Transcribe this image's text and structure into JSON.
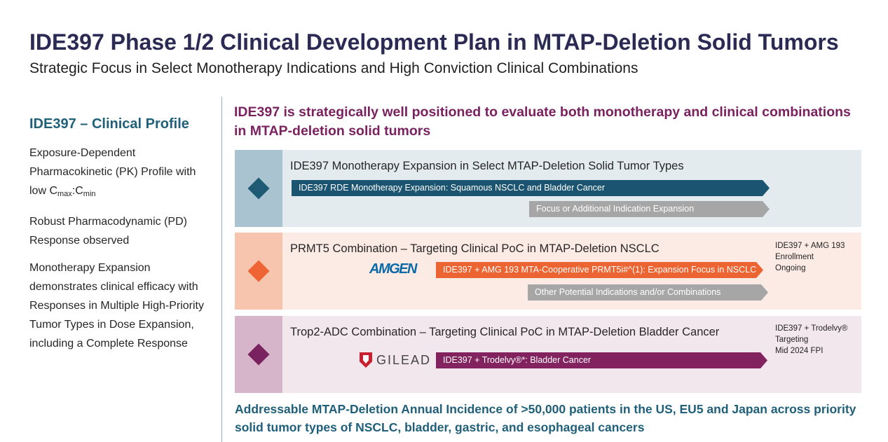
{
  "title": "IDE397 Phase 1/2 Clinical Development Plan in MTAP-Deletion Solid Tumors",
  "subtitle": "Strategic Focus in Select Monotherapy Indications and High Conviction Clinical Combinations",
  "left": {
    "heading": "IDE397 – Clinical Profile",
    "p1_main": "Exposure-Dependent Pharmacokinetic (PK) Profile with low C",
    "p1_sub1": "max",
    "p1_mid": ":C",
    "p1_sub2": "min",
    "p2": "Robust Pharmacodynamic (PD) Response observed",
    "p3": "Monotherapy Expansion demonstrates clinical efficacy with Responses in Multiple High-Priority Tumor Types in Dose Expansion, including a Complete Response"
  },
  "headline": "IDE397 is strategically well positioned to evaluate both monotherapy and clinical combinations in MTAP-deletion solid tumors",
  "rows": [
    {
      "title": "IDE397 Monotherapy Expansion in Select MTAP-Deletion Solid Tumor Types",
      "arrow1": "IDE397 RDE Monotherapy Expansion: Squamous NSCLC and Bladder Cancer",
      "arrow2": "Focus or Additional Indication Expansion"
    },
    {
      "title": "PRMT5 Combination – Targeting Clinical PoC in MTAP-Deletion NSCLC",
      "logo": "AMGEN",
      "arrow1": "IDE397 + AMG 193 MTA-Cooperative PRMT5i#^(1): Expansion Focus in NSCLC",
      "arrow2": "Other Potential Indications and/or Combinations",
      "note": [
        "IDE397 + AMG 193",
        "Enrollment",
        "Ongoing"
      ]
    },
    {
      "title": "Trop2-ADC Combination – Targeting Clinical PoC in MTAP-Deletion Bladder Cancer",
      "logo": "GILEAD",
      "arrow1": "IDE397 + Trodelvy®*: Bladder Cancer",
      "note": [
        "IDE397 + Trodelvy®",
        "Targeting",
        "Mid 2024 FPI"
      ]
    }
  ],
  "bottom": "Addressable MTAP-Deletion Annual Incidence of >50,000 patients in the US, EU5 and Japan across priority solid tumor types of NSCLC, bladder, gastric, and esophageal cancers",
  "colors": {
    "row1_side": "#a9c3d1",
    "row1_bg": "#e3ebef",
    "row1_diamond": "#1f5a74",
    "row1_arrow": "#1a5470",
    "row2_side": "#f7c4ae",
    "row2_bg": "#fcebe5",
    "row2_diamond": "#ee6433",
    "row2_arrow": "#ec6431",
    "row3_side": "#d6b5cb",
    "row3_bg": "#f3e7ee",
    "row3_diamond": "#7a2160",
    "row3_arrow": "#82225f",
    "grey_arrow": "#a6a6a6"
  },
  "icons": [
    "diamond-marker",
    "gilead-shield-icon"
  ]
}
